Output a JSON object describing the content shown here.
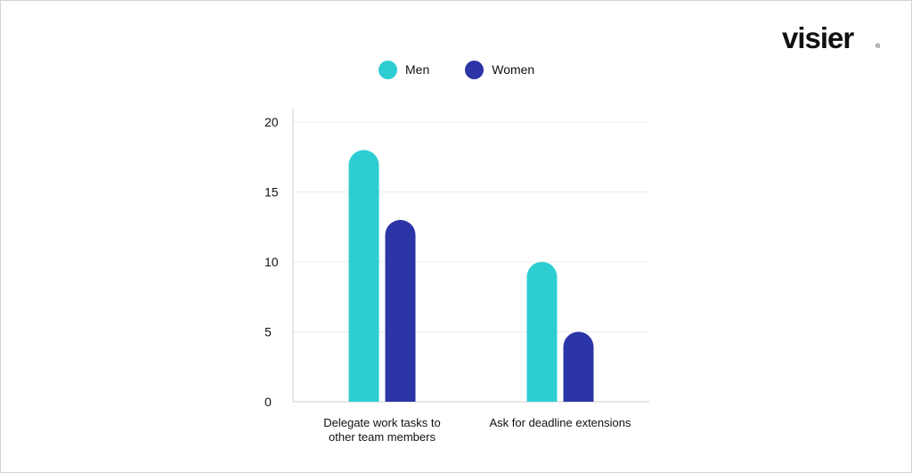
{
  "brand": {
    "logo_text": "visier",
    "logo_mark": "®"
  },
  "colors": {
    "men": "#2ecdd2",
    "women": "#2b35a6",
    "grid": "#ececec",
    "axis": "#cfcfcf"
  },
  "chart_data": {
    "type": "bar",
    "categories": [
      [
        "Delegate work tasks to",
        "other team members"
      ],
      [
        "Ask for deadline extensions"
      ]
    ],
    "series": [
      {
        "name": "Men",
        "values": [
          18,
          10
        ]
      },
      {
        "name": "Women",
        "values": [
          13,
          5
        ]
      }
    ],
    "ylim": [
      0,
      20
    ],
    "yticks": [
      0,
      5,
      10,
      15,
      20
    ],
    "grid": true,
    "legend_position": "top-center"
  }
}
